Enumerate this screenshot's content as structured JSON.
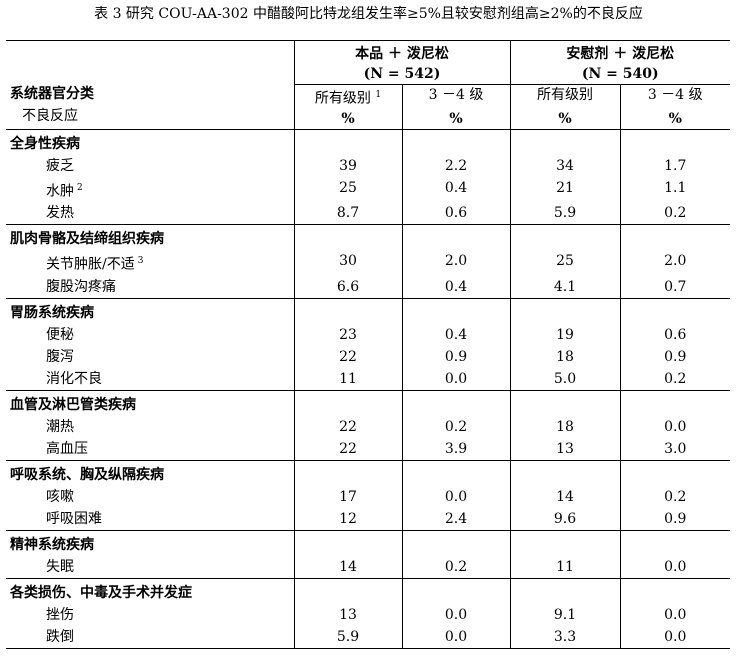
{
  "caption": "表 3  研究 COU-AA-302 中醋酸阿比特龙组发生率≥5%且较安慰剂组高≥2%的不良反应",
  "header": {
    "left_title": "系统器官分类",
    "left_sub": "不良反应",
    "group1_name": "本品 ＋ 泼尼松",
    "group1_n": "(N = 542)",
    "group2_name": "安慰剂 ＋ 泼尼松",
    "group2_n": "(N = 540)",
    "all_grades": "所有级别",
    "all_grades_note": "1",
    "grade34": "3 －4 级",
    "unit": "%"
  },
  "categories": [
    {
      "name": "全身性疾病",
      "rows": [
        {
          "name": "疲乏",
          "note": "",
          "v": [
            "39",
            "2.2",
            "34",
            "1.7"
          ]
        },
        {
          "name": "水肿",
          "note": "2",
          "v": [
            "25",
            "0.4",
            "21",
            "1.1"
          ]
        },
        {
          "name": "发热",
          "note": "",
          "v": [
            "8.7",
            "0.6",
            "5.9",
            "0.2"
          ]
        }
      ]
    },
    {
      "name": "肌肉骨骼及结缔组织疾病",
      "rows": [
        {
          "name": "关节肿胀/不适",
          "note": "3",
          "v": [
            "30",
            "2.0",
            "25",
            "2.0"
          ]
        },
        {
          "name": "腹股沟疼痛",
          "note": "",
          "v": [
            "6.6",
            "0.4",
            "4.1",
            "0.7"
          ]
        }
      ]
    },
    {
      "name": "胃肠系统疾病",
      "rows": [
        {
          "name": "便秘",
          "note": "",
          "v": [
            "23",
            "0.4",
            "19",
            "0.6"
          ]
        },
        {
          "name": "腹泻",
          "note": "",
          "v": [
            "22",
            "0.9",
            "18",
            "0.9"
          ]
        },
        {
          "name": "消化不良",
          "note": "",
          "v": [
            "11",
            "0.0",
            "5.0",
            "0.2"
          ]
        }
      ]
    },
    {
      "name": "血管及淋巴管类疾病",
      "rows": [
        {
          "name": "潮热",
          "note": "",
          "v": [
            "22",
            "0.2",
            "18",
            "0.0"
          ]
        },
        {
          "name": "高血压",
          "note": "",
          "v": [
            "22",
            "3.9",
            "13",
            "3.0"
          ]
        }
      ]
    },
    {
      "name": "呼吸系统、胸及纵隔疾病",
      "rows": [
        {
          "name": "咳嗽",
          "note": "",
          "v": [
            "17",
            "0.0",
            "14",
            "0.2"
          ]
        },
        {
          "name": "呼吸困难",
          "note": "",
          "v": [
            "12",
            "2.4",
            "9.6",
            "0.9"
          ]
        }
      ]
    },
    {
      "name": "精神系统疾病",
      "rows": [
        {
          "name": "失眠",
          "note": "",
          "v": [
            "14",
            "0.2",
            "11",
            "0.0"
          ]
        }
      ]
    },
    {
      "name": "各类损伤、中毒及手术并发症",
      "rows": [
        {
          "name": "挫伤",
          "note": "",
          "v": [
            "13",
            "0.0",
            "9.1",
            "0.0"
          ]
        },
        {
          "name": "跌倒",
          "note": "",
          "v": [
            "5.9",
            "0.0",
            "3.3",
            "0.0"
          ]
        }
      ]
    }
  ]
}
